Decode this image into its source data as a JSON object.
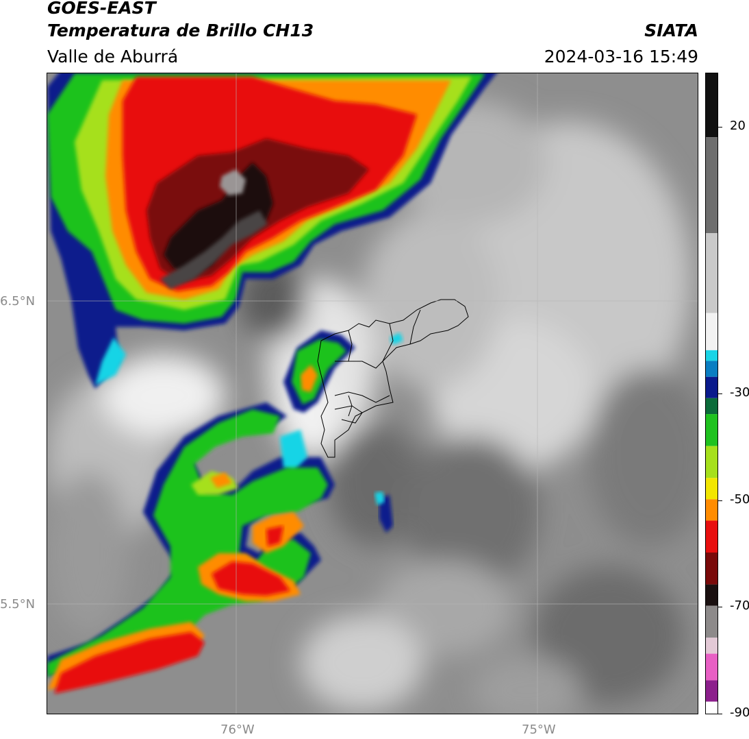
{
  "header": {
    "satellite": "GOES-EAST",
    "product": "Temperatura de Brillo CH13",
    "region": "Valle de Aburrá",
    "agency": "SIATA",
    "datetime": "2024-03-16 15:49"
  },
  "axes": {
    "lat_labels": [
      "6.5°N",
      "5.5°N"
    ],
    "lon_labels": [
      "76°W",
      "75°W"
    ]
  },
  "colorbar": {
    "ticks": [
      "20",
      "-30",
      "-50",
      "-70",
      "-90"
    ],
    "tick_values": [
      20,
      -30,
      -50,
      -70,
      -90
    ],
    "range": [
      -90,
      30
    ],
    "segments": [
      {
        "from": 30,
        "to": 18,
        "color": "#111111"
      },
      {
        "from": 18,
        "to": 0,
        "color": "#6e6e6e"
      },
      {
        "from": 0,
        "to": -15,
        "color": "#c9c9c9"
      },
      {
        "from": -15,
        "to": -22,
        "color": "#f2f2f2"
      },
      {
        "from": -22,
        "to": -24,
        "color": "#19d4e6"
      },
      {
        "from": -24,
        "to": -27,
        "color": "#0a7ec2"
      },
      {
        "from": -27,
        "to": -31,
        "color": "#0a1a8c"
      },
      {
        "from": -31,
        "to": -34,
        "color": "#0b6b3a"
      },
      {
        "from": -34,
        "to": -40,
        "color": "#1fc21f"
      },
      {
        "from": -40,
        "to": -46,
        "color": "#a6e01c"
      },
      {
        "from": -46,
        "to": -50,
        "color": "#f2e600"
      },
      {
        "from": -50,
        "to": -54,
        "color": "#ff8c00"
      },
      {
        "from": -54,
        "to": -60,
        "color": "#e80f0f"
      },
      {
        "from": -60,
        "to": -66,
        "color": "#7a0a0a"
      },
      {
        "from": -66,
        "to": -70,
        "color": "#1a1010"
      },
      {
        "from": -70,
        "to": -76,
        "color": "#8d8a8a"
      },
      {
        "from": -76,
        "to": -79,
        "color": "#e3c9d6"
      },
      {
        "from": -79,
        "to": -84,
        "color": "#e85fc4"
      },
      {
        "from": -84,
        "to": -88,
        "color": "#8c1f8c"
      },
      {
        "from": -88,
        "to": -90,
        "color": "#ffffff"
      }
    ]
  },
  "colors": {
    "clear_sky": "#8d8d8d",
    "cold_cloud": "#e80f0f",
    "coldest": "#1a1010",
    "accent_cyan": "#19d4e6"
  }
}
